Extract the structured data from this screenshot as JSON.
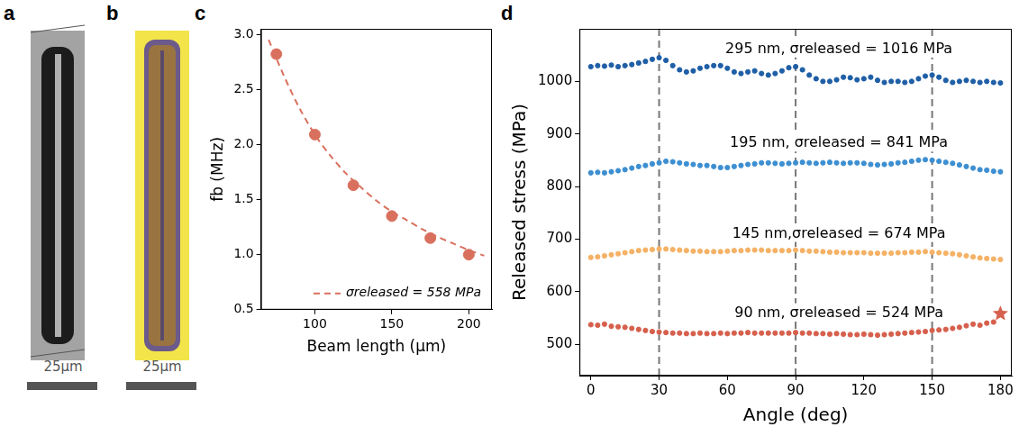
{
  "panels": {
    "a": {
      "label": "a",
      "scale_bar": "25µm"
    },
    "b": {
      "label": "b",
      "scale_bar": "25µm"
    }
  },
  "chart_data": [
    {
      "label": "c",
      "type": "scatter",
      "x_label": "Beam length (µm)",
      "y_label": "fb (MHz)",
      "xlim": [
        65,
        215
      ],
      "xticks": [
        100,
        150,
        200
      ],
      "ylim": [
        0.5,
        3.05
      ],
      "yticks": [
        0.5,
        {
          "value": 1,
          "label": "1.0"
        },
        1.5,
        {
          "value": 2,
          "label": "2.0"
        },
        2.5,
        {
          "value": 3,
          "label": "3.0"
        }
      ],
      "grid": false,
      "legend": "lower right",
      "series": [
        {
          "name": "σreleased = 558 MPa",
          "type": "line",
          "line_style": "dashed",
          "color": "#d9705e",
          "x": [
            70,
            80,
            90,
            100,
            110,
            120,
            130,
            140,
            150,
            160,
            170,
            180,
            190,
            200,
            210
          ],
          "values": [
            2.95,
            2.62,
            2.33,
            2.09,
            1.9,
            1.74,
            1.61,
            1.49,
            1.39,
            1.31,
            1.23,
            1.16,
            1.1,
            1.04,
            0.99
          ]
        },
        {
          "type": "scatter",
          "marker": "circle",
          "color": "#d9705e",
          "x": [
            75,
            100,
            125,
            150,
            175,
            200
          ],
          "values": [
            2.82,
            2.09,
            1.63,
            1.35,
            1.15,
            1.0
          ]
        }
      ]
    },
    {
      "label": "d",
      "type": "scatter",
      "x_label": "Angle (deg)",
      "y_label": "Released stress (MPa)",
      "xlim": [
        -5,
        185
      ],
      "xticks": [
        0,
        30,
        60,
        90,
        120,
        150,
        180
      ],
      "ylim": [
        440,
        1100
      ],
      "yticks": [
        500,
        600,
        700,
        800,
        900,
        1000
      ],
      "grid": false,
      "vlines": [
        30,
        90,
        150
      ],
      "x": [
        0,
        3,
        6,
        9,
        12,
        15,
        18,
        21,
        24,
        27,
        30,
        33,
        36,
        39,
        42,
        45,
        48,
        51,
        54,
        57,
        60,
        63,
        66,
        69,
        72,
        75,
        78,
        81,
        84,
        87,
        90,
        93,
        96,
        99,
        102,
        105,
        108,
        111,
        114,
        117,
        120,
        123,
        126,
        129,
        132,
        135,
        138,
        141,
        144,
        147,
        150,
        153,
        156,
        159,
        162,
        165,
        168,
        171,
        174,
        177,
        180
      ],
      "series": [
        {
          "name": "295 nm, σreleased = 1016 MPa",
          "color": "#1f5fa6",
          "marker": "circle",
          "values": [
            1028,
            1030,
            1029,
            1031,
            1028,
            1030,
            1032,
            1035,
            1038,
            1042,
            1045,
            1040,
            1030,
            1022,
            1018,
            1020,
            1025,
            1028,
            1030,
            1030,
            1025,
            1018,
            1015,
            1018,
            1020,
            1015,
            1012,
            1015,
            1020,
            1026,
            1028,
            1022,
            1012,
            1005,
            1000,
            1000,
            1003,
            1008,
            1007,
            1003,
            1005,
            1008,
            1002,
            998,
            1000,
            1000,
            998,
            1000,
            1005,
            1010,
            1012,
            1008,
            1002,
            998,
            1000,
            1002,
            1000,
            998,
            1000,
            998,
            997
          ]
        },
        {
          "name": "195 nm, σreleased = 841 MPa",
          "color": "#3d8fd1",
          "marker": "circle",
          "values": [
            826,
            827,
            826,
            828,
            830,
            832,
            835,
            838,
            840,
            843,
            845,
            848,
            847,
            845,
            843,
            842,
            840,
            840,
            838,
            836,
            836,
            838,
            840,
            842,
            843,
            845,
            845,
            844,
            843,
            844,
            845,
            846,
            845,
            844,
            845,
            846,
            845,
            844,
            845,
            845,
            844,
            842,
            841,
            842,
            843,
            845,
            846,
            848,
            850,
            851,
            850,
            848,
            846,
            844,
            841,
            838,
            835,
            832,
            831,
            829,
            828
          ]
        },
        {
          "name": "145 nm,σreleased = 674 MPa",
          "color": "#f5b266",
          "marker": "circle",
          "values": [
            665,
            666,
            668,
            670,
            672,
            674,
            676,
            678,
            679,
            680,
            681,
            681,
            680,
            679,
            678,
            677,
            677,
            676,
            676,
            676,
            677,
            678,
            678,
            679,
            679,
            679,
            678,
            678,
            678,
            678,
            679,
            678,
            677,
            677,
            676,
            675,
            675,
            674,
            674,
            674,
            674,
            673,
            673,
            673,
            673,
            674,
            674,
            675,
            675,
            676,
            675,
            674,
            673,
            672,
            670,
            668,
            666,
            664,
            663,
            662,
            661
          ]
        },
        {
          "name": "90 nm, σreleased = 524 MPa",
          "color": "#d6604d",
          "marker": "circle",
          "values": [
            537,
            536,
            538,
            534,
            533,
            532,
            530,
            528,
            526,
            524,
            523,
            522,
            521,
            521,
            520,
            520,
            521,
            520,
            520,
            521,
            520,
            521,
            521,
            522,
            521,
            521,
            521,
            521,
            521,
            521,
            522,
            521,
            521,
            520,
            520,
            519,
            520,
            519,
            518,
            518,
            519,
            518,
            517,
            518,
            519,
            520,
            521,
            522,
            523,
            524,
            526,
            527,
            528,
            530,
            532,
            535,
            538,
            536,
            540,
            542,
            null
          ]
        }
      ],
      "highlight": {
        "x": 180,
        "y": 558,
        "marker": "star",
        "color": "#d6604d"
      }
    }
  ]
}
